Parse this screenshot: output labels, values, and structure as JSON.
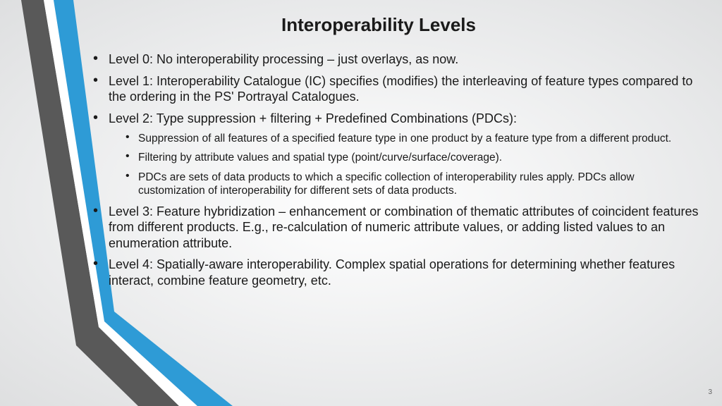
{
  "title": {
    "text": "Interoperability Levels",
    "fontsize": 26
  },
  "body_fontsize": 18,
  "sub_fontsize": 15.5,
  "line_height": 1.25,
  "bullets": [
    {
      "text": "Level 0: No interoperability processing – just overlays, as now."
    },
    {
      "text": "Level 1: Interoperability Catalogue (IC) specifies (modifies) the interleaving of feature types compared to the ordering in the PS' Portrayal Catalogues."
    },
    {
      "text": "Level 2: Type suppression + filtering + Predefined Combinations (PDCs):",
      "sub": [
        "Suppression of all features of a specified feature type in one product by a feature type from a different product.",
        "Filtering by attribute values and spatial type (point/curve/surface/coverage).",
        "PDCs are sets of data products to which a specific collection of interoperability rules apply. PDCs allow customization of interoperability for different sets of data products."
      ]
    },
    {
      "text": "Level 3: Feature hybridization – enhancement or combination of thematic attributes of coincident features from different products. E.g., re-calculation of numeric attribute values, or adding listed values to an enumeration attribute."
    },
    {
      "text": "Level 4: Spatially-aware interoperability. Complex spatial operations for determining whether features interact, combine feature geometry, etc."
    }
  ],
  "page_number": "3",
  "chevron": {
    "outer_gray": "#595959",
    "inner_blue": "#2e9bd6",
    "gap_white": "#ffffff"
  }
}
